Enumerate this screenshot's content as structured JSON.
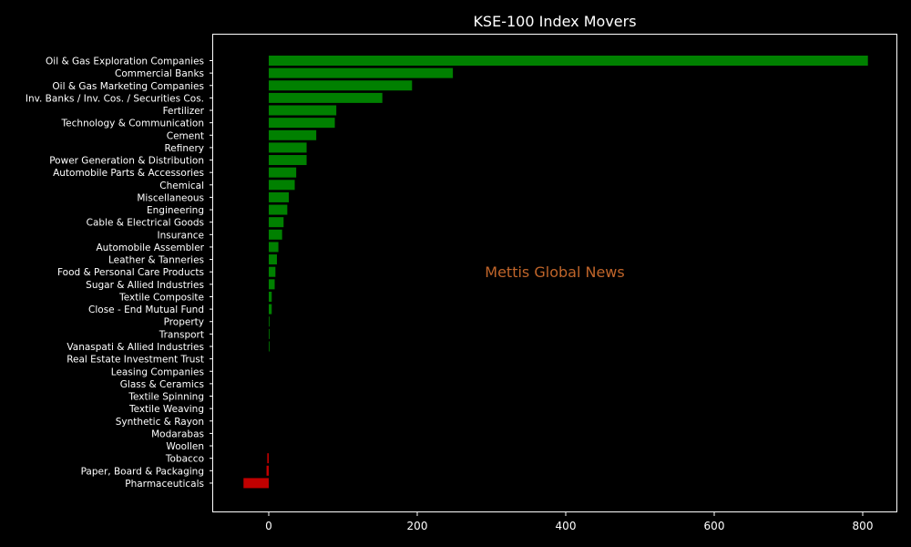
{
  "chart_data": {
    "type": "bar",
    "orientation": "horizontal",
    "title": "KSE-100 Index Movers",
    "watermark": "Mettis Global News",
    "xlim": [
      -75,
      850
    ],
    "xticks": [
      0,
      200,
      400,
      600,
      800
    ],
    "grid": false,
    "legend": "none",
    "colors": {
      "background": "#000000",
      "positive": "#008000",
      "negative": "#c00000",
      "text": "#ffffff",
      "watermark": "#c0652a"
    },
    "categories": [
      "Oil & Gas Exploration Companies",
      "Commercial Banks",
      "Oil & Gas Marketing Companies",
      "Inv. Banks / Inv. Cos. / Securities Cos.",
      "Fertilizer",
      "Technology & Communication",
      "Cement",
      "Refinery",
      "Power Generation & Distribution",
      "Automobile Parts & Accessories",
      "Chemical",
      "Miscellaneous",
      "Engineering",
      "Cable & Electrical Goods",
      "Insurance",
      "Automobile Assembler",
      "Leather & Tanneries",
      "Food & Personal Care Products",
      "Sugar & Allied Industries",
      "Textile Composite",
      "Close - End Mutual Fund",
      "Property",
      "Transport",
      "Vanaspati & Allied Industries",
      "Real Estate Investment Trust",
      "Leasing Companies",
      "Glass & Ceramics",
      "Textile Spinning",
      "Textile Weaving",
      "Synthetic & Rayon",
      "Modarabas",
      "Woollen",
      "Tobacco",
      "Paper, Board & Packaging",
      "Pharmaceuticals"
    ],
    "values": [
      807,
      248,
      193,
      153,
      91,
      89,
      64,
      51,
      51,
      37,
      35,
      27,
      25,
      20,
      18,
      13,
      11,
      9,
      8,
      4,
      4,
      1,
      1,
      1,
      0,
      0,
      0,
      0,
      0,
      0,
      0,
      0,
      -2,
      -3,
      -34
    ]
  }
}
